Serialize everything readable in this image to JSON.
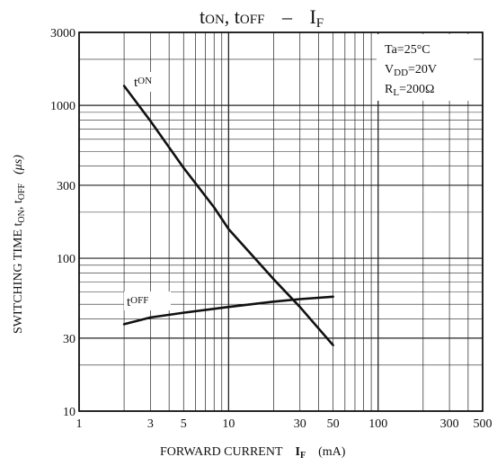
{
  "chart_data": {
    "type": "line",
    "title": {
      "t1": "t",
      "s1": "ON",
      "sep": ", t",
      "s2": "OFF",
      "dash": "–",
      "f": "I",
      "fs": "F"
    },
    "x_axis": {
      "scale": "log",
      "range": [
        1,
        500
      ],
      "ticks": [
        1,
        3,
        5,
        10,
        30,
        50,
        100,
        300,
        500
      ],
      "tick_labels": [
        "1",
        "3",
        "5",
        "10",
        "30",
        "50",
        "100",
        "300",
        "500"
      ],
      "label": {
        "main": "FORWARD CURRENT",
        "sym": "I",
        "sub": "F",
        "unit": "(mA)"
      }
    },
    "y_axis": {
      "scale": "log",
      "range": [
        10,
        3000
      ],
      "ticks": [
        10,
        30,
        100,
        300,
        1000,
        3000
      ],
      "tick_labels": [
        "10",
        "30",
        "100",
        "300",
        "1000",
        "3000"
      ],
      "label": {
        "main": "SWITCHING TIME t",
        "s1": "ON",
        "sep": ", t",
        "s2": "OFF",
        "unit": "(μs)"
      }
    },
    "conditions": [
      {
        "name": "Ta",
        "sub": "",
        "value": "=25°C"
      },
      {
        "name": "V",
        "sub": "DD",
        "value": "=20V"
      },
      {
        "name": "R",
        "sub": "L",
        "value": "=200Ω"
      }
    ],
    "series": [
      {
        "name": "tON",
        "label_main": "t",
        "label_sub": "ON",
        "x": [
          2,
          3,
          5,
          8,
          10,
          20,
          30,
          50
        ],
        "y": [
          1340,
          790,
          390,
          215,
          155,
          73,
          48,
          27
        ]
      },
      {
        "name": "tOFF",
        "label_main": "t",
        "label_sub": "OFF",
        "x": [
          2,
          3,
          5,
          10,
          20,
          30,
          50
        ],
        "y": [
          37,
          41,
          44,
          48,
          52,
          54,
          56
        ]
      }
    ],
    "grid": true
  }
}
